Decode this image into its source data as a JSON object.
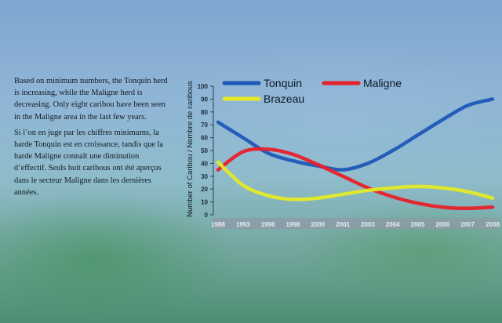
{
  "text": {
    "english": "Based on minimum numbers, the Tonquin herd is increasing, while the Maligne herd is decreasing. Only eight caribou have been seen in the Maligne area in the last few years.",
    "french": "Si l’on en juge par les chiffres minimums, la harde Tonquin est en croissance, tandis que la harde Maligne connaît une diminution d’effectif. Seuls huit caribous ont été aperçus dans le secteur Maligne dans les dernières années."
  },
  "chart_data": {
    "type": "line",
    "ylabel": "Number of Caribou / Nombre de caribous",
    "xlabel": "",
    "x": [
      "1988",
      "1993",
      "1996",
      "1998",
      "2000",
      "2001",
      "2003",
      "2004",
      "2005",
      "2006",
      "2007",
      "2008"
    ],
    "yticks": [
      0,
      10,
      20,
      30,
      40,
      50,
      60,
      70,
      80,
      90,
      100
    ],
    "ylim": [
      0,
      100
    ],
    "legend_position": "top",
    "grid": false,
    "series": [
      {
        "name": "Tonquin",
        "color": "#1f57b8",
        "values": [
          72,
          60,
          48,
          42,
          38,
          35,
          40,
          50,
          62,
          74,
          85,
          90
        ]
      },
      {
        "name": "Maligne",
        "color": "#e8202a",
        "values": [
          35,
          49,
          51,
          47,
          39,
          30,
          21,
          14,
          9,
          6,
          5,
          6
        ]
      },
      {
        "name": "Brazeau",
        "color": "#e4ea26",
        "values": [
          41,
          23,
          15,
          12,
          13,
          16,
          19,
          21,
          22,
          21,
          18,
          13
        ]
      }
    ]
  }
}
